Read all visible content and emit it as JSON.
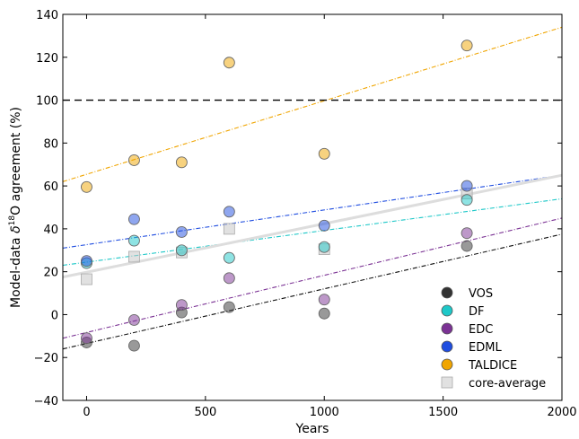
{
  "chart_data": {
    "type": "scatter",
    "title": "",
    "xlabel": "Years",
    "ylabel_prefix": "Model-data ",
    "ylabel_delta": "δ",
    "ylabel_sup": "18",
    "ylabel_suffix": "O agreement (%)",
    "xlim": [
      -100,
      2000
    ],
    "ylim": [
      -40,
      140
    ],
    "xticks": [
      0,
      500,
      1000,
      1500,
      2000
    ],
    "xtick_labels": [
      "0",
      "500",
      "1000",
      "1500",
      "2000"
    ],
    "yticks": [
      -40,
      -20,
      0,
      20,
      40,
      60,
      80,
      100,
      120,
      140
    ],
    "ytick_labels": [
      "−40",
      "−20",
      "0",
      "20",
      "40",
      "60",
      "80",
      "100",
      "120",
      "140"
    ],
    "grid": false,
    "legend_position": "lower-right",
    "reference_line": {
      "y": 100,
      "style": "dashed",
      "color": "#000000"
    },
    "series": [
      {
        "name": "VOS",
        "key": "vos",
        "color": "#333333",
        "marker": "circle",
        "x": [
          0,
          200,
          400,
          600,
          1000,
          1600
        ],
        "y": [
          -13,
          -14.5,
          1,
          3.5,
          0.5,
          32
        ],
        "trend": {
          "x": [
            -100,
            2000
          ],
          "y": [
            -16,
            37.5
          ],
          "color": "#111111"
        }
      },
      {
        "name": "DF",
        "key": "df",
        "color": "#1ec8c8",
        "marker": "circle",
        "x": [
          0,
          200,
          400,
          600,
          1000,
          1600
        ],
        "y": [
          24,
          34.5,
          30,
          26.5,
          31.5,
          53.5
        ],
        "trend": {
          "x": [
            -100,
            2000
          ],
          "y": [
            23,
            54
          ],
          "color": "#1ec8c8"
        }
      },
      {
        "name": "EDC",
        "key": "edc",
        "color": "#7b3294",
        "marker": "circle",
        "x": [
          0,
          200,
          400,
          600,
          1000,
          1600
        ],
        "y": [
          -11,
          -2.5,
          4.5,
          17,
          7,
          38
        ],
        "trend": {
          "x": [
            -100,
            2000
          ],
          "y": [
            -11,
            45
          ],
          "color": "#7b3294"
        }
      },
      {
        "name": "EDML",
        "key": "edml",
        "color": "#1f4de0",
        "marker": "circle",
        "x": [
          0,
          200,
          400,
          600,
          1000,
          1600
        ],
        "y": [
          25,
          44.5,
          38.5,
          48,
          41.5,
          60
        ],
        "trend": {
          "x": [
            -100,
            2000
          ],
          "y": [
            31,
            65
          ],
          "color": "#1f4de0"
        }
      },
      {
        "name": "TALDICE",
        "key": "taldice",
        "color": "#f0a500",
        "marker": "circle",
        "x": [
          0,
          200,
          400,
          600,
          1000,
          1600
        ],
        "y": [
          59.5,
          72,
          71,
          117.5,
          75,
          125.5
        ],
        "trend": {
          "x": [
            -100,
            2000
          ],
          "y": [
            62,
            134
          ],
          "color": "#f0a500"
        }
      },
      {
        "name": "core-average",
        "key": "core-average",
        "color": "#c8c8c8",
        "marker": "square",
        "x": [
          0,
          200,
          400,
          600,
          1000,
          1600
        ],
        "y": [
          16.5,
          27,
          29,
          40,
          30.5,
          56.5
        ],
        "trend": {
          "x": [
            -100,
            2000
          ],
          "y": [
            17.5,
            65
          ],
          "color": "#dddddd"
        }
      }
    ]
  }
}
